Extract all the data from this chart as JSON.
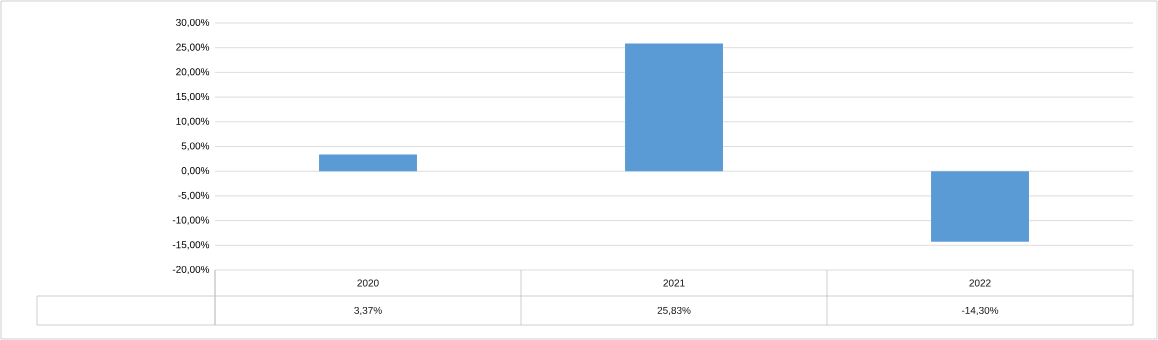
{
  "chart_data": {
    "type": "bar",
    "categories": [
      "2020",
      "2021",
      "2022"
    ],
    "values": [
      3.37,
      25.83,
      -14.3
    ],
    "color": "#5b9bd5",
    "value_labels": [
      "3,37%",
      "25,83%",
      "-14,30%"
    ],
    "ylim": [
      -20,
      30
    ],
    "yticks": [
      {
        "value": -20,
        "label": "-20,00%"
      },
      {
        "value": -15,
        "label": "-15,00%"
      },
      {
        "value": -10,
        "label": "-10,00%"
      },
      {
        "value": -5,
        "label": "-5,00%"
      },
      {
        "value": 0,
        "label": "0,00%"
      },
      {
        "value": 5,
        "label": "5,00%"
      },
      {
        "value": 10,
        "label": "10,00%"
      },
      {
        "value": 15,
        "label": "15,00%"
      },
      {
        "value": 20,
        "label": "20,00%"
      },
      {
        "value": 25,
        "label": "25,00%"
      },
      {
        "value": 30,
        "label": "30,00%"
      }
    ],
    "grid": "y",
    "legend": false
  }
}
